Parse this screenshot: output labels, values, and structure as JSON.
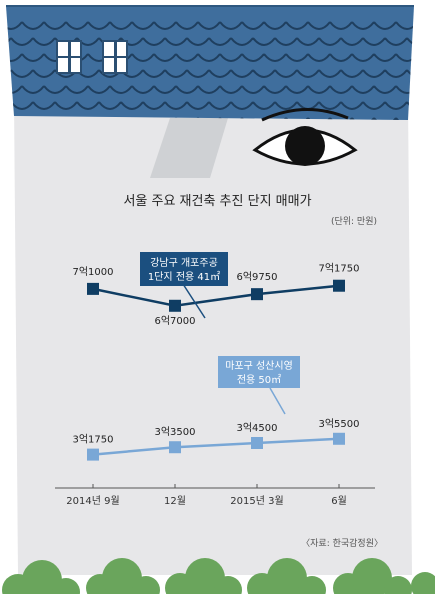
{
  "chart_data": {
    "type": "line",
    "title": "서울 주요 재건축 추진 단지 매매가",
    "unit": "(단위: 만원)",
    "source": "〈자료: 한국감정원〉",
    "categories": [
      "2014년 9월",
      "12월",
      "2015년 3월",
      "6월"
    ],
    "ylim": [
      30000,
      75000
    ],
    "series": [
      {
        "name_lines": [
          "강남구 개포주공",
          "1단지 전용 41㎡"
        ],
        "values": [
          71000,
          67000,
          69750,
          71750
        ],
        "value_labels": [
          "7억1000",
          "6억7000",
          "6억9750",
          "7억1750"
        ],
        "color": "#0f3d63",
        "label_bg": "#1b4f7f"
      },
      {
        "name_lines": [
          "마포구 성산시영",
          "전용 50㎡"
        ],
        "values": [
          31750,
          33500,
          34500,
          35500
        ],
        "value_labels": [
          "3억1750",
          "3억3500",
          "3억4500",
          "3억5500"
        ],
        "color": "#79a7d6",
        "label_bg": "#79a7d6"
      }
    ]
  }
}
